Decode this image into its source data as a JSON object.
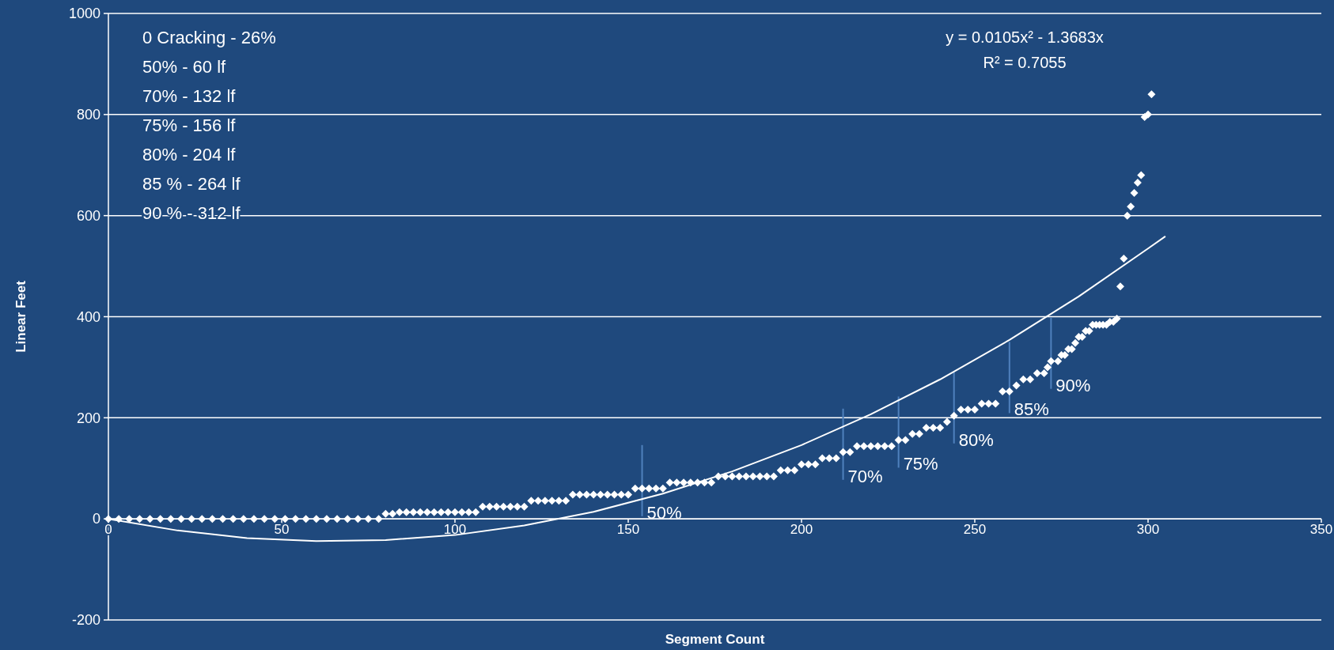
{
  "chart_data": {
    "type": "scatter",
    "xlabel": "Segment Count",
    "ylabel": "Linear Feet",
    "xlim": [
      0,
      350
    ],
    "xticks": [
      0,
      50,
      100,
      150,
      200,
      250,
      300,
      350
    ],
    "ylim": [
      -200,
      1000
    ],
    "yticks": [
      -200,
      0,
      200,
      400,
      600,
      800,
      1000
    ],
    "grid": "y",
    "marker": "diamond",
    "series": [
      {
        "color": "#ffffff",
        "x": [
          0,
          3,
          6,
          9,
          12,
          15,
          18,
          21,
          24,
          27,
          30,
          33,
          36,
          39,
          42,
          45,
          48,
          51,
          54,
          57,
          60,
          63,
          66,
          69,
          72,
          75,
          78,
          80,
          82,
          84,
          86,
          88,
          90,
          92,
          94,
          96,
          98,
          100,
          102,
          104,
          106,
          108,
          110,
          112,
          114,
          116,
          118,
          120,
          122,
          124,
          126,
          128,
          130,
          132,
          134,
          136,
          138,
          140,
          142,
          144,
          146,
          148,
          150,
          152,
          154,
          156,
          158,
          160,
          162,
          164,
          166,
          168,
          170,
          172,
          174,
          176,
          178,
          180,
          182,
          184,
          186,
          188,
          190,
          192,
          194,
          196,
          198,
          200,
          202,
          204,
          206,
          208,
          210,
          212,
          214,
          216,
          218,
          220,
          222,
          224,
          226,
          228,
          230,
          232,
          234,
          236,
          238,
          240,
          242,
          244,
          246,
          248,
          250,
          252,
          254,
          256,
          258,
          260,
          262,
          264,
          266,
          268,
          270,
          271,
          272,
          274,
          275,
          276,
          277,
          278,
          279,
          280,
          281,
          282,
          283,
          284,
          285,
          286,
          287,
          288,
          289,
          290,
          291,
          292,
          293,
          294,
          295,
          296,
          297,
          298,
          299,
          300,
          301
        ],
        "values": [
          0,
          0,
          0,
          0,
          0,
          0,
          0,
          0,
          0,
          0,
          0,
          0,
          0,
          0,
          0,
          0,
          0,
          0,
          0,
          0,
          0,
          0,
          0,
          0,
          0,
          0,
          0,
          10,
          10,
          13,
          13,
          13,
          13,
          13,
          13,
          13,
          13,
          13,
          13,
          13,
          13,
          24,
          24,
          24,
          24,
          24,
          24,
          24,
          36,
          36,
          36,
          36,
          36,
          36,
          48,
          48,
          48,
          48,
          48,
          48,
          48,
          48,
          48,
          60,
          60,
          60,
          60,
          60,
          72,
          72,
          72,
          72,
          72,
          72,
          72,
          84,
          84,
          84,
          84,
          84,
          84,
          84,
          84,
          84,
          96,
          96,
          96,
          108,
          108,
          108,
          120,
          120,
          120,
          132,
          132,
          144,
          144,
          144,
          144,
          144,
          144,
          156,
          156,
          168,
          168,
          180,
          180,
          180,
          192,
          204,
          216,
          216,
          216,
          228,
          228,
          228,
          252,
          252,
          264,
          276,
          276,
          288,
          288,
          300,
          312,
          312,
          324,
          324,
          336,
          336,
          348,
          360,
          360,
          372,
          372,
          384,
          384,
          384,
          384,
          384,
          390,
          390,
          396,
          460,
          515,
          600,
          618,
          645,
          665,
          680,
          795,
          800,
          840
        ]
      },
      {
        "type": "line",
        "color": "#ffffff",
        "marker": "none",
        "x": [
          0,
          20,
          40,
          60,
          80,
          100,
          120,
          140,
          160,
          180,
          200,
          220,
          240,
          260,
          280,
          300,
          305
        ],
        "values": [
          0,
          -23,
          -38,
          -44,
          -42,
          -32,
          -13,
          14,
          50,
          94,
          146,
          207,
          276,
          354,
          440,
          535,
          559
        ]
      }
    ],
    "annotations": [
      "0 Cracking - 26%",
      "50% -  60 lf",
      "70% - 132 lf",
      "75% - 156 lf",
      "80% - 204 lf",
      "85 % - 264 lf",
      "90 % - 312 lf",
      "y = 0.0105x² - 1.3683x",
      "R² = 0.7055",
      {
        "text": "50%",
        "x": 154,
        "y": 60
      },
      {
        "text": "70%",
        "x": 212,
        "y": 132
      },
      {
        "text": "75%",
        "x": 228,
        "y": 156
      },
      {
        "text": "80%",
        "x": 244,
        "y": 204
      },
      {
        "text": "85%",
        "x": 260,
        "y": 264
      },
      {
        "text": "90%",
        "x": 272,
        "y": 312
      }
    ]
  }
}
